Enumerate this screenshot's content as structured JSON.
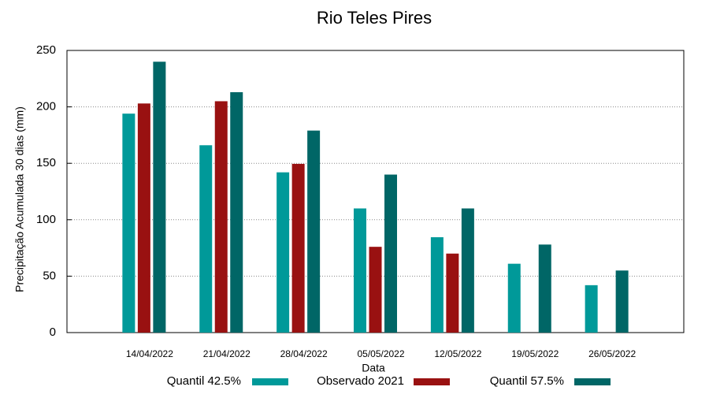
{
  "chart_data": {
    "type": "bar",
    "title": "Rio Teles Pires",
    "x_label": "Data",
    "y_label": "Precipitação Acumulada 30 dias (mm)",
    "categories": [
      "14/04/2022",
      "21/04/2022",
      "28/04/2022",
      "05/05/2022",
      "12/05/2022",
      "19/05/2022",
      "26/05/2022"
    ],
    "series": [
      {
        "name": "Quantil 42.5%",
        "color": "#009999",
        "values": [
          194,
          166,
          142,
          110,
          84.5,
          61,
          42
        ]
      },
      {
        "name": "Observado 2021",
        "color": "#991111",
        "values": [
          203,
          205,
          149.5,
          76,
          70,
          null,
          null
        ]
      },
      {
        "name": "Quantil 57.5%",
        "color": "#006666",
        "values": [
          240,
          213,
          179,
          140,
          110,
          78,
          55
        ]
      }
    ],
    "ylim": [
      0,
      250
    ],
    "yticks": [
      0,
      50,
      100,
      150,
      200,
      250
    ],
    "grid": true
  }
}
